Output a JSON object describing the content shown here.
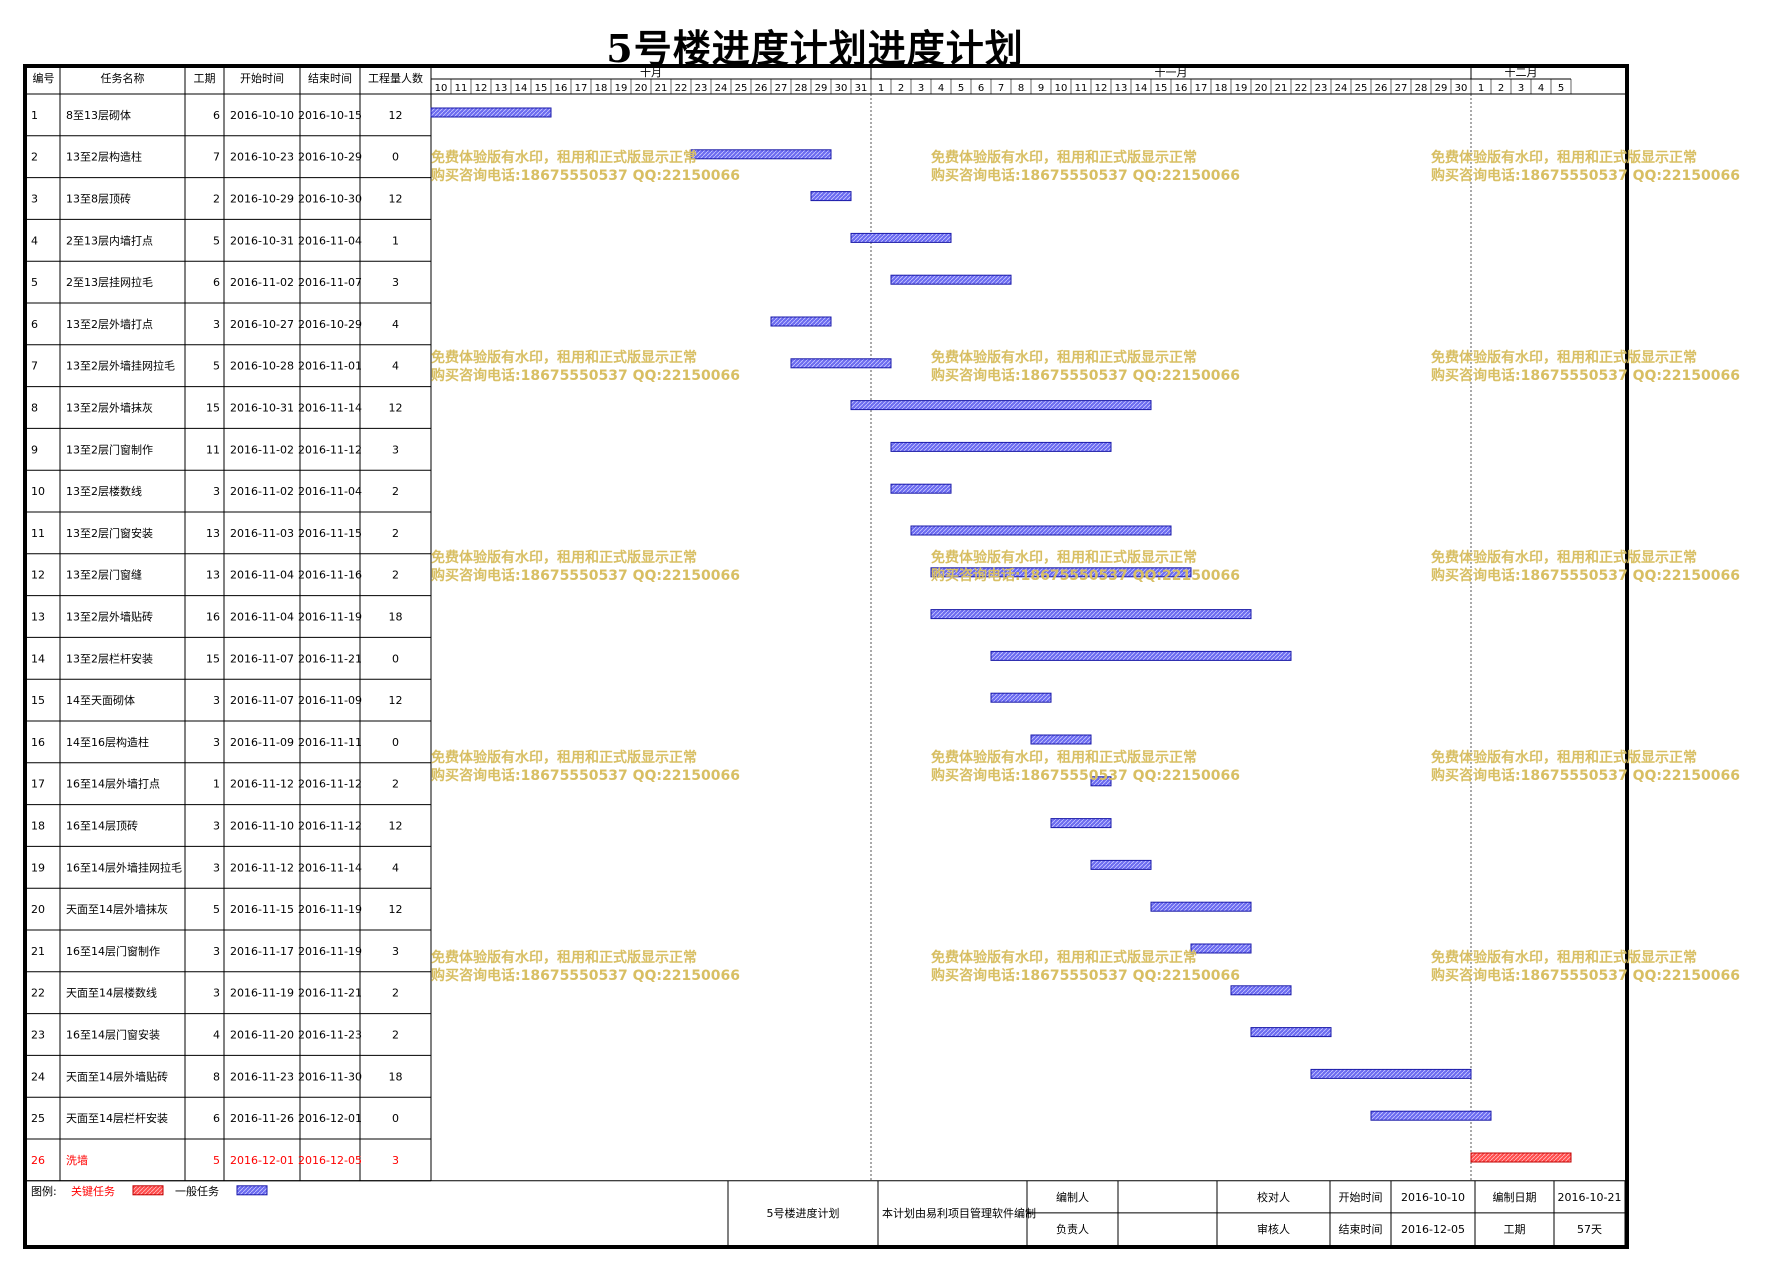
{
  "title": "5号楼进度计划进度计划",
  "headers": [
    "编号",
    "任务名称",
    "工期",
    "开始时间",
    "结束时间",
    "工程量人数"
  ],
  "months": [
    "十月",
    "十一月",
    "十二月"
  ],
  "colors": {
    "critical": "#ff4d4d",
    "normal": "#6a6af0",
    "watermark": "#d8bf63",
    "critical_text": "#ff0000"
  },
  "watermark": {
    "line1": "免费体验版有水印，租用和正式版显示正常",
    "line2": "购买咨询电话:18675550537 QQ:22150066"
  },
  "legend": {
    "label": "图例:",
    "critical_label": "关键任务",
    "normal_label": "一般任务"
  },
  "footer": {
    "plan_name": "5号楼进度计划",
    "software_note": "本计划由易利项目管理软件编制",
    "compiler_label": "编制人",
    "reviewer_label": "校对人",
    "owner_label": "负责人",
    "auditor_label": "审核人",
    "start_label": "开始时间",
    "start_value": "2016-10-10",
    "end_label": "结束时间",
    "end_value": "2016-12-05",
    "date_label": "编制日期",
    "date_value": "2016-10-21",
    "duration_label": "工期",
    "duration_value": "57天"
  },
  "chart_data": {
    "type": "gantt",
    "x_range": [
      "2016-10-10",
      "2016-12-05"
    ],
    "tasks": [
      {
        "id": "1",
        "name": "8至13层砌体",
        "duration": "6",
        "start": "2016-10-10",
        "end": "2016-10-15",
        "workers": "12",
        "critical": false
      },
      {
        "id": "2",
        "name": "13至2层构造柱",
        "duration": "7",
        "start": "2016-10-23",
        "end": "2016-10-29",
        "workers": "0",
        "critical": false
      },
      {
        "id": "3",
        "name": "13至8层顶砖",
        "duration": "2",
        "start": "2016-10-29",
        "end": "2016-10-30",
        "workers": "12",
        "critical": false
      },
      {
        "id": "4",
        "name": "2至13层内墙打点",
        "duration": "5",
        "start": "2016-10-31",
        "end": "2016-11-04",
        "workers": "1",
        "critical": false
      },
      {
        "id": "5",
        "name": "2至13层挂网拉毛",
        "duration": "6",
        "start": "2016-11-02",
        "end": "2016-11-07",
        "workers": "3",
        "critical": false
      },
      {
        "id": "6",
        "name": "13至2层外墙打点",
        "duration": "3",
        "start": "2016-10-27",
        "end": "2016-10-29",
        "workers": "4",
        "critical": false
      },
      {
        "id": "7",
        "name": "13至2层外墙挂网拉毛",
        "duration": "5",
        "start": "2016-10-28",
        "end": "2016-11-01",
        "workers": "4",
        "critical": false
      },
      {
        "id": "8",
        "name": "13至2层外墙抹灰",
        "duration": "15",
        "start": "2016-10-31",
        "end": "2016-11-14",
        "workers": "12",
        "critical": false
      },
      {
        "id": "9",
        "name": "13至2层门窗制作",
        "duration": "11",
        "start": "2016-11-02",
        "end": "2016-11-12",
        "workers": "3",
        "critical": false
      },
      {
        "id": "10",
        "name": "13至2层楼数线",
        "duration": "3",
        "start": "2016-11-02",
        "end": "2016-11-04",
        "workers": "2",
        "critical": false
      },
      {
        "id": "11",
        "name": "13至2层门窗安装",
        "duration": "13",
        "start": "2016-11-03",
        "end": "2016-11-15",
        "workers": "2",
        "critical": false
      },
      {
        "id": "12",
        "name": "13至2层门窗缝",
        "duration": "13",
        "start": "2016-11-04",
        "end": "2016-11-16",
        "workers": "2",
        "critical": false
      },
      {
        "id": "13",
        "name": "13至2层外墙贴砖",
        "duration": "16",
        "start": "2016-11-04",
        "end": "2016-11-19",
        "workers": "18",
        "critical": false
      },
      {
        "id": "14",
        "name": "13至2层栏杆安装",
        "duration": "15",
        "start": "2016-11-07",
        "end": "2016-11-21",
        "workers": "0",
        "critical": false
      },
      {
        "id": "15",
        "name": "14至天面砌体",
        "duration": "3",
        "start": "2016-11-07",
        "end": "2016-11-09",
        "workers": "12",
        "critical": false
      },
      {
        "id": "16",
        "name": "14至16层构造柱",
        "duration": "3",
        "start": "2016-11-09",
        "end": "2016-11-11",
        "workers": "0",
        "critical": false
      },
      {
        "id": "17",
        "name": "16至14层外墙打点",
        "duration": "1",
        "start": "2016-11-12",
        "end": "2016-11-12",
        "workers": "2",
        "critical": false
      },
      {
        "id": "18",
        "name": "16至14层顶砖",
        "duration": "3",
        "start": "2016-11-10",
        "end": "2016-11-12",
        "workers": "12",
        "critical": false
      },
      {
        "id": "19",
        "name": "16至14层外墙挂网拉毛",
        "duration": "3",
        "start": "2016-11-12",
        "end": "2016-11-14",
        "workers": "4",
        "critical": false
      },
      {
        "id": "20",
        "name": "天面至14层外墙抹灰",
        "duration": "5",
        "start": "2016-11-15",
        "end": "2016-11-19",
        "workers": "12",
        "critical": false
      },
      {
        "id": "21",
        "name": "16至14层门窗制作",
        "duration": "3",
        "start": "2016-11-17",
        "end": "2016-11-19",
        "workers": "3",
        "critical": false
      },
      {
        "id": "22",
        "name": "天面至14层楼数线",
        "duration": "3",
        "start": "2016-11-19",
        "end": "2016-11-21",
        "workers": "2",
        "critical": false
      },
      {
        "id": "23",
        "name": "16至14层门窗安装",
        "duration": "4",
        "start": "2016-11-20",
        "end": "2016-11-23",
        "workers": "2",
        "critical": false
      },
      {
        "id": "24",
        "name": "天面至14层外墙贴砖",
        "duration": "8",
        "start": "2016-11-23",
        "end": "2016-11-30",
        "workers": "18",
        "critical": false
      },
      {
        "id": "25",
        "name": "天面至14层栏杆安装",
        "duration": "6",
        "start": "2016-11-26",
        "end": "2016-12-01",
        "workers": "0",
        "critical": false
      },
      {
        "id": "26",
        "name": "洗墙",
        "duration": "5",
        "start": "2016-12-01",
        "end": "2016-12-05",
        "workers": "3",
        "critical": true
      }
    ]
  }
}
